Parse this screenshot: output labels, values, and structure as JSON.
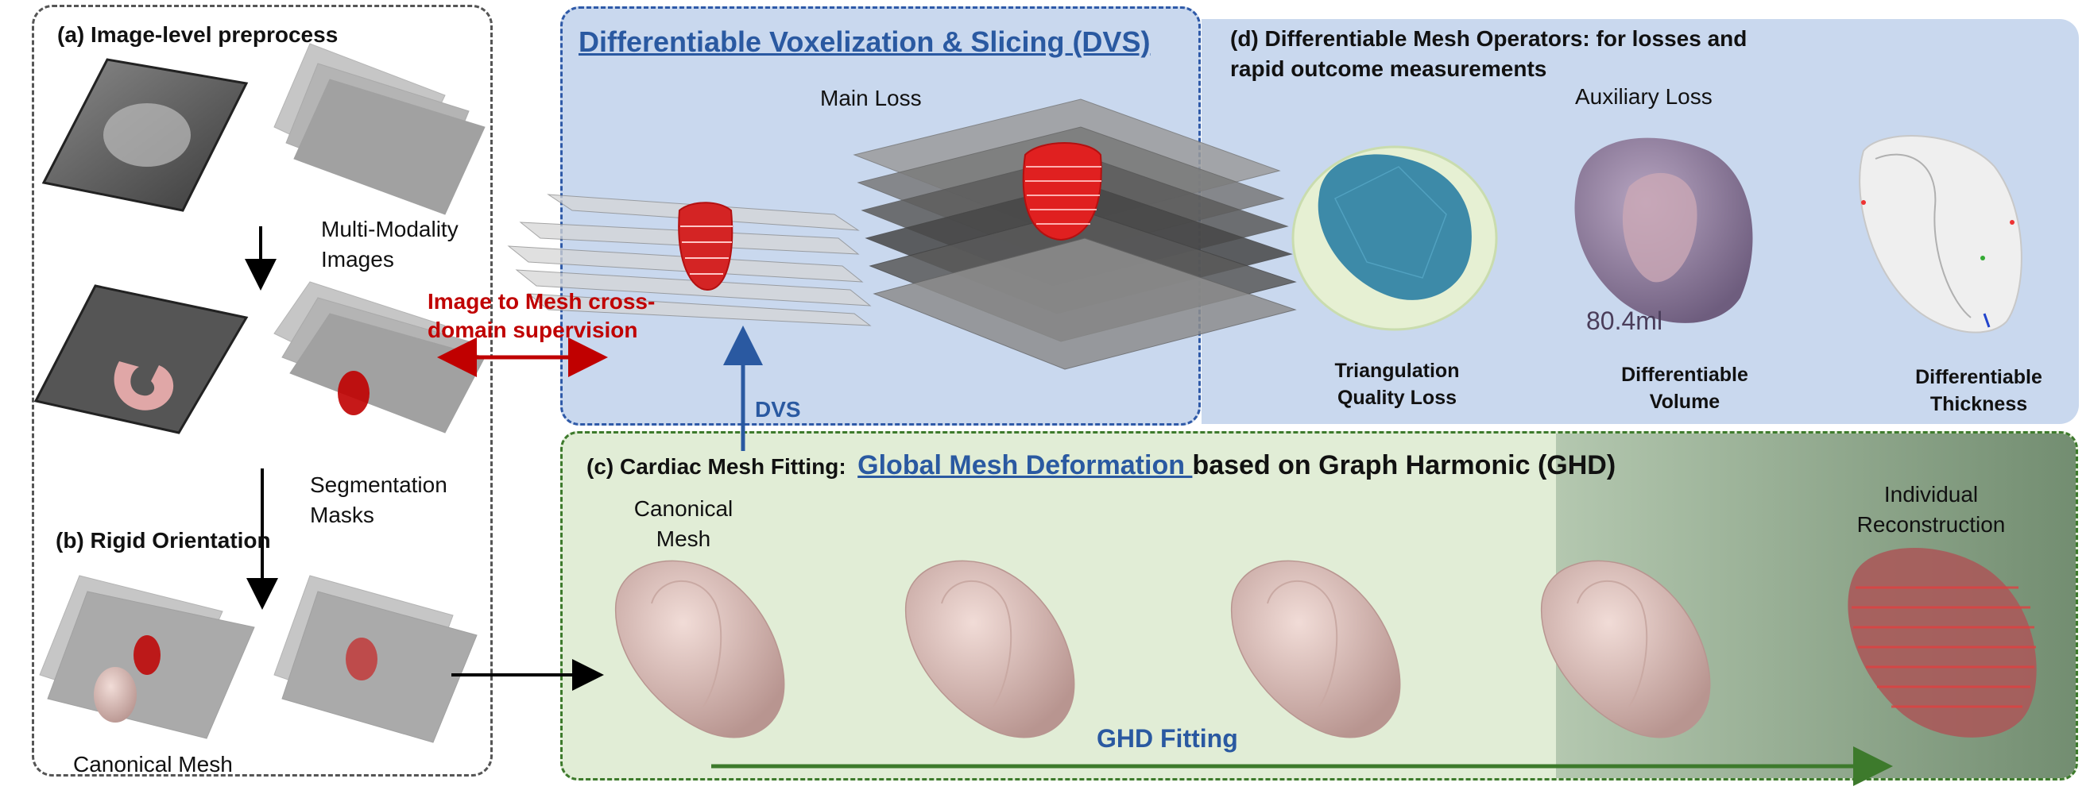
{
  "panel_a": {
    "title": "(a) Image-level preprocess",
    "multimodality": [
      "Multi-Modality",
      "Images"
    ],
    "segmentation": [
      "Segmentation",
      "Masks"
    ]
  },
  "panel_b": {
    "title": "(b) Rigid Orientation",
    "canonical_mesh": "Canonical Mesh"
  },
  "cross_domain": [
    "Image to Mesh cross-",
    "domain supervision"
  ],
  "dvs": {
    "title": "Differentiable Voxelization & Slicing  (DVS)",
    "main_loss": "Main  Loss",
    "arrow_label": "DVS"
  },
  "panel_d": {
    "title_line1": "(d) Differentiable Mesh Operators: for  losses and",
    "title_line2": "rapid outcome measurements",
    "aux_loss": "Auxiliary  Loss",
    "volume_value": "80.4ml",
    "ops": [
      {
        "line1": "Triangulation",
        "line2": "Quality Loss"
      },
      {
        "line1": "Differentiable",
        "line2": "Volume"
      },
      {
        "line1": "Differentiable",
        "line2": "Thickness"
      }
    ]
  },
  "panel_c": {
    "prefix": "(c) Cardiac Mesh Fitting:",
    "highlight": "Global Mesh Deformation ",
    "suffix": "based on Graph Harmonic (GHD)",
    "canonical": [
      "Canonical",
      "Mesh"
    ],
    "individual": [
      "Individual",
      "Reconstruction"
    ],
    "fitting": "GHD Fitting"
  },
  "colors": {
    "dvs_blue": "#2a59a1",
    "ghd_green": "#3d7a2c",
    "supervision_red": "#c00000",
    "mesh_pink": "#d9b8b2"
  }
}
